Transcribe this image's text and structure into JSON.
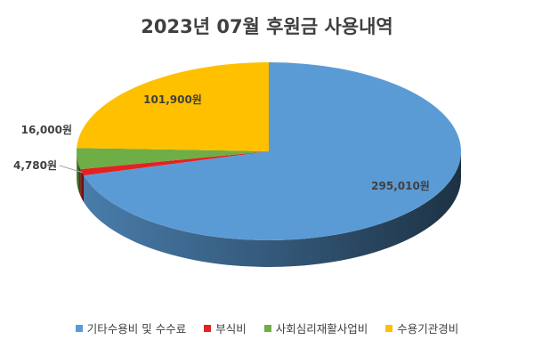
{
  "chart_data": {
    "type": "pie",
    "title": "2023년 07월 후원금 사용내역",
    "categories": [
      "기타수용비 및 수수료",
      "부식비",
      "사회심리재활사업비",
      "수용기관경비"
    ],
    "values": [
      295010,
      4780,
      16000,
      101900
    ],
    "labels": [
      "295,010원",
      "4,780원",
      "16,000원",
      "101,900원"
    ],
    "colors": [
      "#5B9BD5",
      "#E32222",
      "#6FAD47",
      "#FFC000"
    ],
    "style": "3d",
    "legend": "bottom"
  }
}
